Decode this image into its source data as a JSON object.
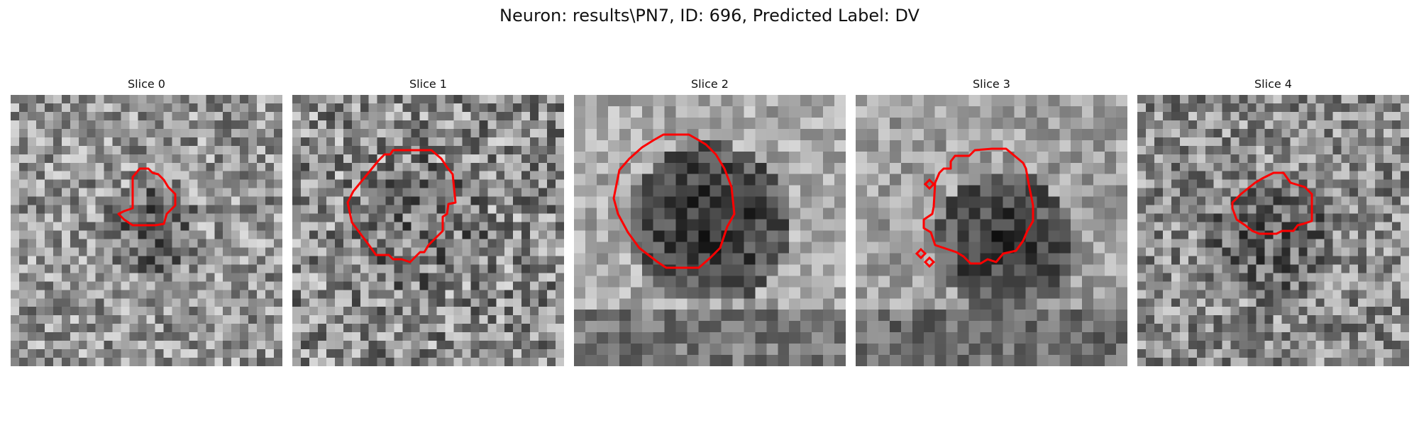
{
  "figure": {
    "title": "Neuron: results\\PN7, ID: 696, Predicted Label: DV"
  },
  "colors": {
    "contour": "#ff0000",
    "background": "#ffffff"
  },
  "panels": [
    {
      "title": "Slice 0",
      "image": "noisy grayscale microscopy patch with faint dark blob",
      "contour": "small red polygon"
    },
    {
      "title": "Slice 1",
      "image": "noisy grayscale microscopy patch",
      "contour": "medium red polygon"
    },
    {
      "title": "Slice 2",
      "image": "grayscale patch with large dark round cell body",
      "contour": "large red polygon"
    },
    {
      "title": "Slice 3",
      "image": "grayscale patch with dark round cell body",
      "contour": "red polygon with small diamonds"
    },
    {
      "title": "Slice 4",
      "image": "noisy grayscale microscopy patch",
      "contour": "small red polygon"
    }
  ]
}
